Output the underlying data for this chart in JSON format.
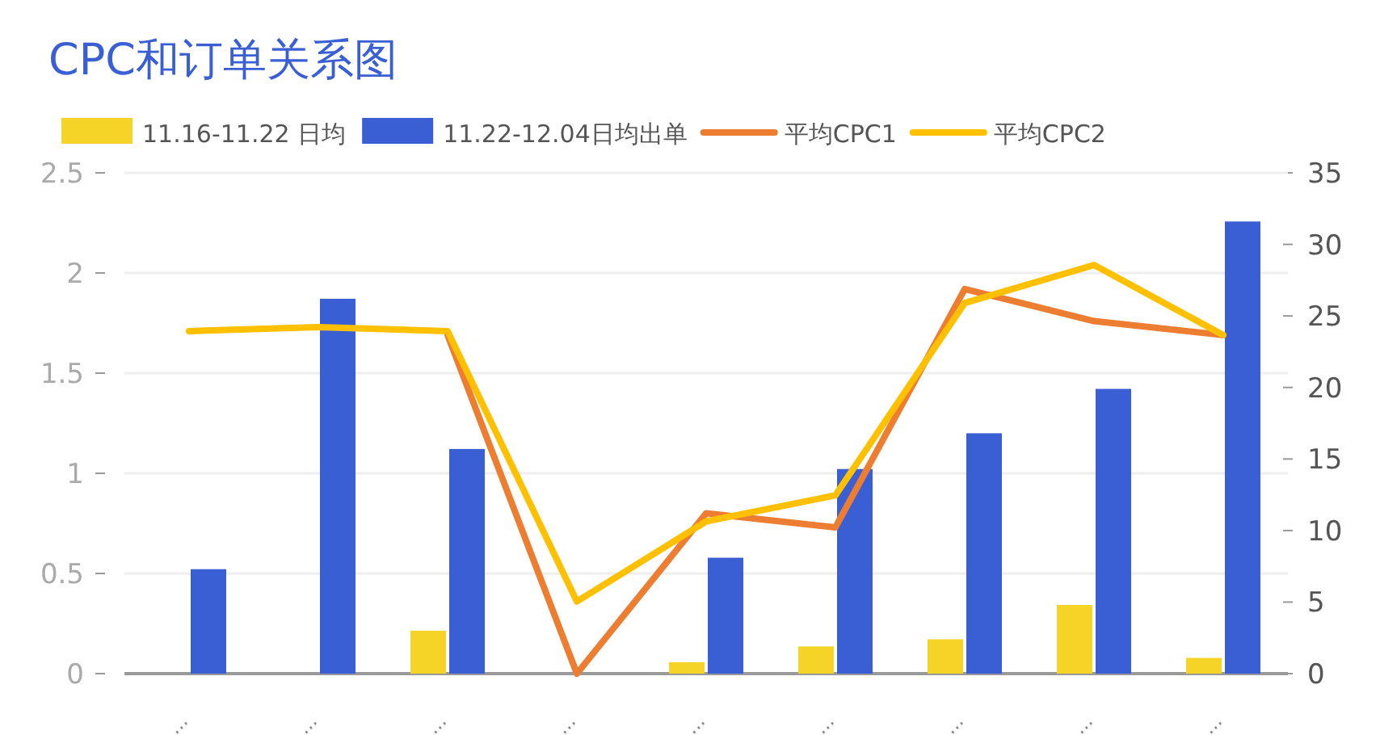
{
  "chart_data": {
    "type": "bar",
    "title": "CPC和订单关系图",
    "categories": [
      "...",
      "...",
      "...",
      "...",
      "...",
      "...",
      "...",
      "...",
      "..."
    ],
    "series": [
      {
        "name": "11.16-11.22 日均",
        "color": "#f5d327",
        "axis": "y2",
        "values": [
          0,
          0,
          3.0,
          0,
          0.8,
          1.9,
          2.4,
          4.8,
          1.1
        ]
      },
      {
        "name": "11.22-12.04日均出单",
        "color": "#3a5fd4",
        "axis": "y2",
        "values": [
          7.3,
          26.2,
          15.7,
          0,
          8.1,
          14.3,
          16.8,
          19.9,
          31.6
        ]
      },
      {
        "name": "平均CPC1",
        "color": "#ed7d31",
        "type": "line",
        "values": [
          null,
          null,
          1.69,
          0,
          0.8,
          0.73,
          1.92,
          1.76,
          1.69
        ]
      },
      {
        "name": "平均CPC2",
        "color": "#ffc000",
        "type": "line",
        "values": [
          1.71,
          1.73,
          1.71,
          0.36,
          0.76,
          0.89,
          1.85,
          2.04,
          1.69
        ]
      }
    ],
    "ylim": [
      0,
      2.5
    ],
    "yticks": [
      0,
      0.5,
      1,
      1.5,
      2,
      2.5
    ],
    "y2lim": [
      0,
      35
    ],
    "y2ticks": [
      0,
      5,
      10,
      15,
      20,
      25,
      30,
      35
    ],
    "grid": "y",
    "legend": "top"
  }
}
